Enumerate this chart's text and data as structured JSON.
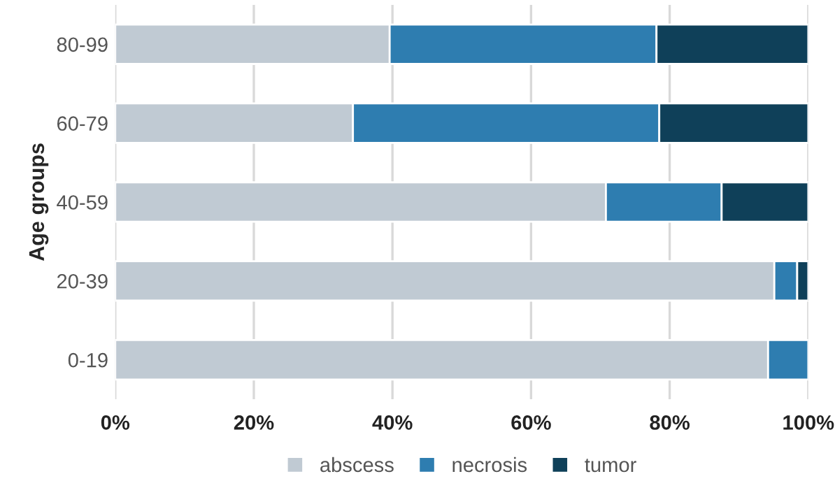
{
  "chart_data": {
    "type": "bar",
    "orientation": "horizontal",
    "stacked": true,
    "ylabel": "Age groups",
    "categories": [
      "80-99",
      "60-79",
      "40-59",
      "20-39",
      "0-19"
    ],
    "series": [
      {
        "name": "abscess",
        "color": "#c0cad3",
        "values": [
          39.6,
          34.3,
          70.8,
          95.1,
          94.2
        ]
      },
      {
        "name": "necrosis",
        "color": "#2e7db0",
        "values": [
          38.5,
          44.2,
          16.7,
          3.3,
          5.8
        ]
      },
      {
        "name": "tumor",
        "color": "#0f4059",
        "values": [
          21.9,
          21.5,
          12.5,
          1.6,
          null
        ]
      }
    ],
    "xlim": [
      0,
      100
    ],
    "xticks": [
      {
        "value": 0,
        "label": "0%"
      },
      {
        "value": 20,
        "label": "20%"
      },
      {
        "value": 40,
        "label": "40%"
      },
      {
        "value": 60,
        "label": "60%"
      },
      {
        "value": 80,
        "label": "80%"
      },
      {
        "value": 100,
        "label": "100%"
      }
    ],
    "grid": "x",
    "legend": "bottom"
  }
}
